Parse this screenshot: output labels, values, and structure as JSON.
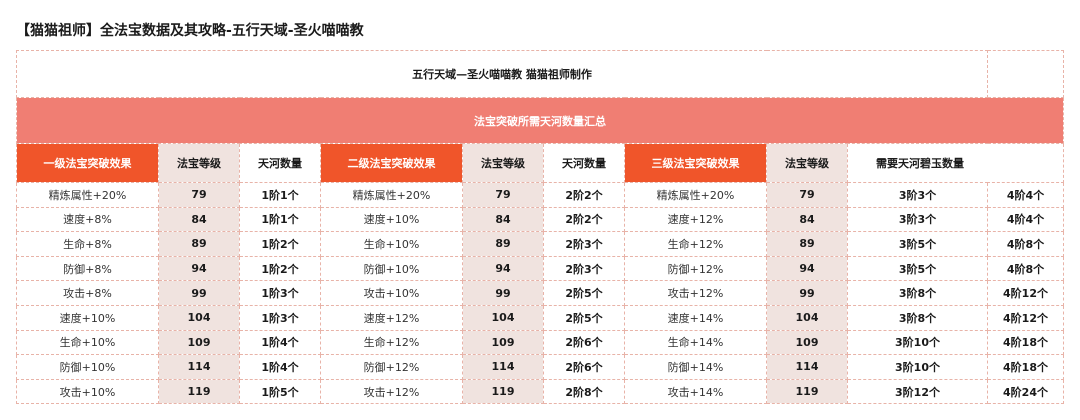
{
  "page_title": "【猫猫祖师】全法宝数据及其攻略-五行天域-圣火喵喵教",
  "table_title": "五行天域—圣火喵喵教 猫猫祖师制作",
  "subtitle": "法宝突破所需天河数量汇总",
  "headers": [
    "一级法宝突破效果",
    "法宝等级",
    "天河数量",
    "二级法宝突破效果",
    "法宝等级",
    "天河数量",
    "三级法宝突破效果",
    "法宝等级",
    "需要天河碧玉数量"
  ],
  "rows": [
    [
      "精炼属性+20%",
      "79",
      "1阶1个",
      "精炼属性+20%",
      "79",
      "2阶2个",
      "精炼属性+20%",
      "79",
      "3阶3个",
      "4阶4个"
    ],
    [
      "速度+8%",
      "84",
      "1阶1个",
      "速度+10%",
      "84",
      "2阶2个",
      "速度+12%",
      "84",
      "3阶3个",
      "4阶4个"
    ],
    [
      "生命+8%",
      "89",
      "1阶2个",
      "生命+10%",
      "89",
      "2阶3个",
      "生命+12%",
      "89",
      "3阶5个",
      "4阶8个"
    ],
    [
      "防御+8%",
      "94",
      "1阶2个",
      "防御+10%",
      "94",
      "2阶3个",
      "防御+12%",
      "94",
      "3阶5个",
      "4阶8个"
    ],
    [
      "攻击+8%",
      "99",
      "1阶3个",
      "攻击+10%",
      "99",
      "2阶5个",
      "攻击+12%",
      "99",
      "3阶8个",
      "4阶12个"
    ],
    [
      "速度+10%",
      "104",
      "1阶3个",
      "速度+12%",
      "104",
      "2阶5个",
      "速度+14%",
      "104",
      "3阶8个",
      "4阶12个"
    ],
    [
      "生命+10%",
      "109",
      "1阶4个",
      "生命+12%",
      "109",
      "2阶6个",
      "生命+14%",
      "109",
      "3阶10个",
      "4阶18个"
    ],
    [
      "防御+10%",
      "114",
      "1阶4个",
      "防御+12%",
      "114",
      "2阶6个",
      "防御+14%",
      "114",
      "3阶10个",
      "4阶18个"
    ],
    [
      "攻击+10%",
      "119",
      "1阶5个",
      "攻击+12%",
      "119",
      "2阶8个",
      "攻击+14%",
      "119",
      "3阶12个",
      "4阶24个"
    ]
  ]
}
